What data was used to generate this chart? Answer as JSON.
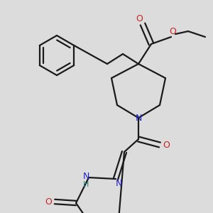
{
  "bg_color": "#dcdcdc",
  "bond_color": "#1a1a1a",
  "N_color": "#2222cc",
  "O_color": "#cc2222",
  "H_color": "#228888",
  "line_width": 1.6,
  "figsize": [
    3.0,
    3.0
  ],
  "dpi": 100,
  "xlim": [
    0,
    300
  ],
  "ylim": [
    0,
    300
  ]
}
